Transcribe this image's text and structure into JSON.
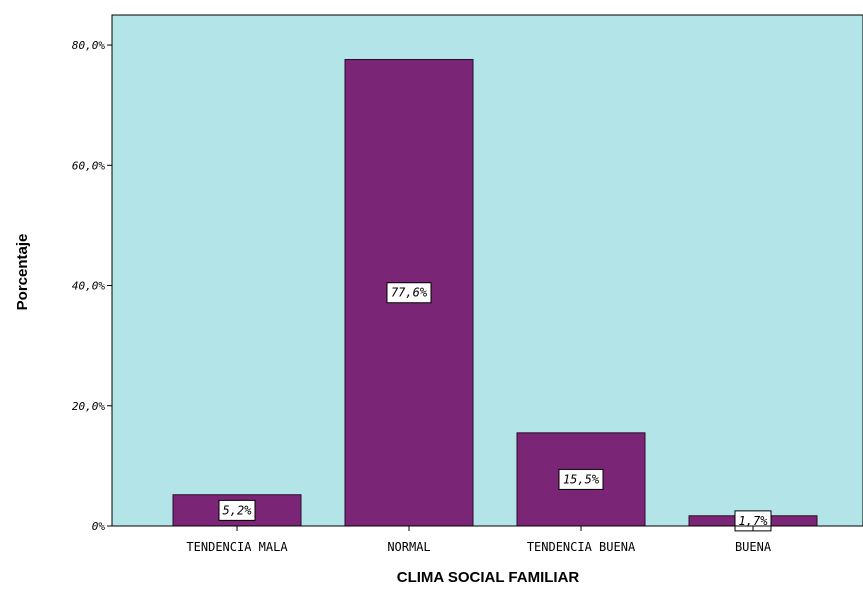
{
  "chart_data": {
    "type": "bar",
    "title": "",
    "xlabel": "CLIMA SOCIAL FAMILIAR",
    "ylabel": "Porcentaje",
    "categories": [
      "TENDENCIA MALA",
      "NORMAL",
      "TENDENCIA BUENA",
      "BUENA"
    ],
    "values": [
      5.2,
      77.6,
      15.5,
      1.7
    ],
    "data_labels": [
      "5,2%",
      "77,6%",
      "15,5%",
      "1,7%"
    ],
    "ylim": [
      0,
      85
    ],
    "yticks": [
      0,
      20,
      40,
      60,
      80
    ],
    "ytick_labels": [
      "0%",
      "20,0%",
      "40,0%",
      "60,0%",
      "80,0%"
    ],
    "grid": false,
    "legend": "none",
    "colors": {
      "plot_background": "#B3E5E8",
      "bar_fill": "#7B2577",
      "bar_stroke": "#2b0b29",
      "label_box": "#ffffff"
    }
  }
}
